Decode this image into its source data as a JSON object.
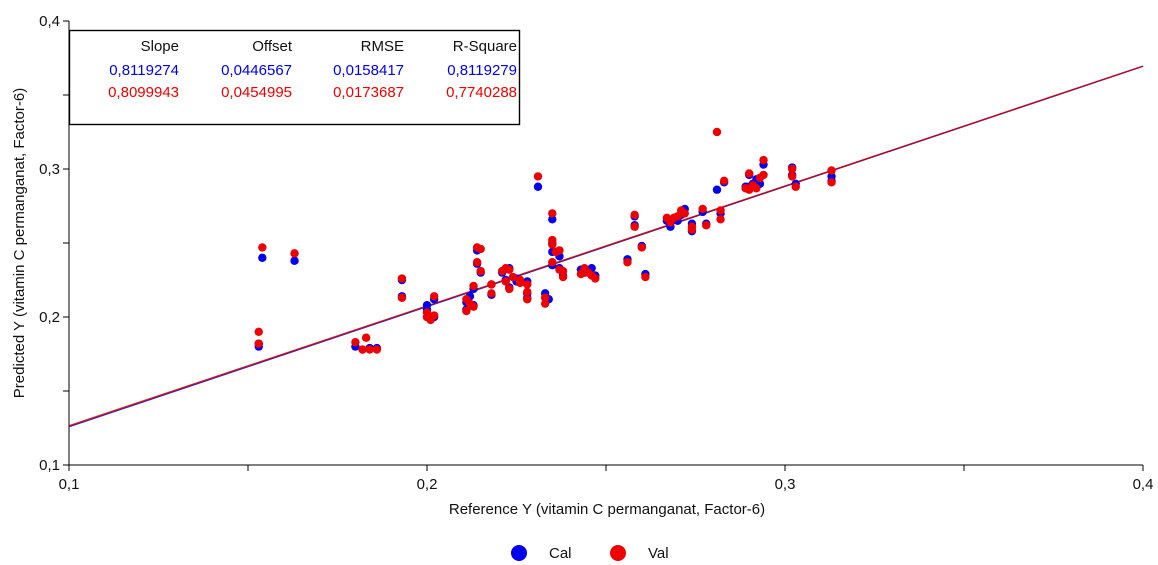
{
  "chart_data": {
    "type": "scatter",
    "xlabel": "Reference Y (vitamin C permanganat, Factor-6)",
    "ylabel": "Predicted Y (vitamin C permanganat, Factor-6)",
    "xlim": [
      0.1,
      0.4
    ],
    "ylim": [
      0.1,
      0.4
    ],
    "x_ticks": [
      "0,1",
      "0,2",
      "0,3",
      "0,4"
    ],
    "y_ticks": [
      "0,1",
      "0,2",
      "0,3",
      "0,4"
    ],
    "grid": false,
    "legend_position": "bottom-center",
    "stats_table": {
      "headers": [
        "Slope",
        "Offset",
        "RMSE",
        "R-Square"
      ],
      "rows": [
        {
          "name": "Cal",
          "color": "#0000ee",
          "values": [
            "0,8119274",
            "0,0446567",
            "0,0158417",
            "0,8119279"
          ]
        },
        {
          "name": "Val",
          "color": "#ee0000",
          "values": [
            "0,8099943",
            "0,0454995",
            "0,0173687",
            "0,7740288"
          ]
        }
      ]
    },
    "regression_lines": [
      {
        "name": "Cal",
        "color": "#0000cc",
        "slope": 0.8119274,
        "offset": 0.0446567
      },
      {
        "name": "Val",
        "color": "#cc0000",
        "slope": 0.8099943,
        "offset": 0.0454995
      }
    ],
    "series": [
      {
        "name": "Cal",
        "color": "#0000ee",
        "points": [
          [
            0.153,
            0.18
          ],
          [
            0.153,
            0.182
          ],
          [
            0.154,
            0.24
          ],
          [
            0.163,
            0.238
          ],
          [
            0.18,
            0.18
          ],
          [
            0.182,
            0.178
          ],
          [
            0.184,
            0.179
          ],
          [
            0.186,
            0.179
          ],
          [
            0.193,
            0.225
          ],
          [
            0.193,
            0.214
          ],
          [
            0.2,
            0.208
          ],
          [
            0.2,
            0.205
          ],
          [
            0.2,
            0.2
          ],
          [
            0.202,
            0.212
          ],
          [
            0.202,
            0.2
          ],
          [
            0.211,
            0.205
          ],
          [
            0.211,
            0.21
          ],
          [
            0.212,
            0.214
          ],
          [
            0.213,
            0.219
          ],
          [
            0.213,
            0.208
          ],
          [
            0.214,
            0.236
          ],
          [
            0.214,
            0.245
          ],
          [
            0.215,
            0.23
          ],
          [
            0.218,
            0.215
          ],
          [
            0.218,
            0.222
          ],
          [
            0.221,
            0.23
          ],
          [
            0.222,
            0.225
          ],
          [
            0.223,
            0.22
          ],
          [
            0.223,
            0.233
          ],
          [
            0.225,
            0.226
          ],
          [
            0.225,
            0.224
          ],
          [
            0.228,
            0.224
          ],
          [
            0.228,
            0.216
          ],
          [
            0.228,
            0.213
          ],
          [
            0.231,
            0.288
          ],
          [
            0.233,
            0.216
          ],
          [
            0.234,
            0.212
          ],
          [
            0.235,
            0.266
          ],
          [
            0.235,
            0.235
          ],
          [
            0.235,
            0.25
          ],
          [
            0.235,
            0.244
          ],
          [
            0.237,
            0.241
          ],
          [
            0.237,
            0.233
          ],
          [
            0.238,
            0.228
          ],
          [
            0.243,
            0.232
          ],
          [
            0.244,
            0.23
          ],
          [
            0.246,
            0.233
          ],
          [
            0.247,
            0.228
          ],
          [
            0.256,
            0.239
          ],
          [
            0.258,
            0.262
          ],
          [
            0.258,
            0.268
          ],
          [
            0.26,
            0.248
          ],
          [
            0.261,
            0.229
          ],
          [
            0.267,
            0.265
          ],
          [
            0.268,
            0.261
          ],
          [
            0.269,
            0.267
          ],
          [
            0.27,
            0.265
          ],
          [
            0.271,
            0.269
          ],
          [
            0.272,
            0.273
          ],
          [
            0.274,
            0.263
          ],
          [
            0.274,
            0.258
          ],
          [
            0.277,
            0.271
          ],
          [
            0.278,
            0.263
          ],
          [
            0.281,
            0.286
          ],
          [
            0.282,
            0.27
          ],
          [
            0.283,
            0.291
          ],
          [
            0.289,
            0.288
          ],
          [
            0.29,
            0.296
          ],
          [
            0.29,
            0.288
          ],
          [
            0.291,
            0.29
          ],
          [
            0.292,
            0.293
          ],
          [
            0.293,
            0.29
          ],
          [
            0.294,
            0.303
          ],
          [
            0.302,
            0.301
          ],
          [
            0.302,
            0.296
          ],
          [
            0.303,
            0.29
          ],
          [
            0.313,
            0.295
          ],
          [
            0.313,
            0.292
          ]
        ]
      },
      {
        "name": "Val",
        "color": "#ee0000",
        "points": [
          [
            0.153,
            0.19
          ],
          [
            0.153,
            0.182
          ],
          [
            0.154,
            0.247
          ],
          [
            0.163,
            0.243
          ],
          [
            0.18,
            0.183
          ],
          [
            0.182,
            0.178
          ],
          [
            0.183,
            0.186
          ],
          [
            0.184,
            0.178
          ],
          [
            0.186,
            0.178
          ],
          [
            0.193,
            0.226
          ],
          [
            0.193,
            0.213
          ],
          [
            0.2,
            0.203
          ],
          [
            0.2,
            0.2
          ],
          [
            0.201,
            0.198
          ],
          [
            0.202,
            0.214
          ],
          [
            0.202,
            0.201
          ],
          [
            0.211,
            0.204
          ],
          [
            0.211,
            0.212
          ],
          [
            0.212,
            0.209
          ],
          [
            0.213,
            0.207
          ],
          [
            0.213,
            0.221
          ],
          [
            0.214,
            0.247
          ],
          [
            0.214,
            0.237
          ],
          [
            0.215,
            0.246
          ],
          [
            0.215,
            0.231
          ],
          [
            0.218,
            0.216
          ],
          [
            0.218,
            0.222
          ],
          [
            0.221,
            0.231
          ],
          [
            0.222,
            0.233
          ],
          [
            0.222,
            0.224
          ],
          [
            0.223,
            0.219
          ],
          [
            0.223,
            0.232
          ],
          [
            0.224,
            0.227
          ],
          [
            0.226,
            0.223
          ],
          [
            0.226,
            0.225
          ],
          [
            0.228,
            0.222
          ],
          [
            0.228,
            0.217
          ],
          [
            0.228,
            0.212
          ],
          [
            0.231,
            0.295
          ],
          [
            0.233,
            0.213
          ],
          [
            0.233,
            0.209
          ],
          [
            0.235,
            0.27
          ],
          [
            0.235,
            0.252
          ],
          [
            0.235,
            0.249
          ],
          [
            0.235,
            0.237
          ],
          [
            0.236,
            0.244
          ],
          [
            0.237,
            0.245
          ],
          [
            0.237,
            0.232
          ],
          [
            0.238,
            0.227
          ],
          [
            0.238,
            0.231
          ],
          [
            0.243,
            0.229
          ],
          [
            0.244,
            0.233
          ],
          [
            0.245,
            0.23
          ],
          [
            0.246,
            0.228
          ],
          [
            0.247,
            0.226
          ],
          [
            0.256,
            0.237
          ],
          [
            0.258,
            0.269
          ],
          [
            0.258,
            0.261
          ],
          [
            0.26,
            0.247
          ],
          [
            0.261,
            0.227
          ],
          [
            0.267,
            0.267
          ],
          [
            0.268,
            0.264
          ],
          [
            0.269,
            0.267
          ],
          [
            0.27,
            0.268
          ],
          [
            0.271,
            0.272
          ],
          [
            0.272,
            0.27
          ],
          [
            0.274,
            0.261
          ],
          [
            0.274,
            0.259
          ],
          [
            0.277,
            0.273
          ],
          [
            0.278,
            0.262
          ],
          [
            0.281,
            0.325
          ],
          [
            0.282,
            0.272
          ],
          [
            0.282,
            0.266
          ],
          [
            0.283,
            0.292
          ],
          [
            0.289,
            0.287
          ],
          [
            0.29,
            0.297
          ],
          [
            0.29,
            0.286
          ],
          [
            0.291,
            0.289
          ],
          [
            0.292,
            0.287
          ],
          [
            0.293,
            0.294
          ],
          [
            0.294,
            0.306
          ],
          [
            0.294,
            0.296
          ],
          [
            0.302,
            0.3
          ],
          [
            0.302,
            0.295
          ],
          [
            0.303,
            0.288
          ],
          [
            0.313,
            0.299
          ],
          [
            0.313,
            0.291
          ]
        ]
      }
    ]
  }
}
